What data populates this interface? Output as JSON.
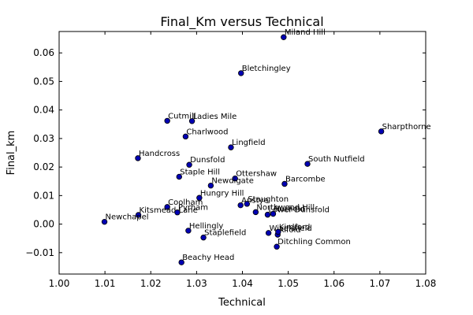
{
  "chart_data": {
    "type": "scatter",
    "title": "Final_Km versus Technical",
    "xlabel": "Technical",
    "ylabel": "Final_km",
    "xlim": [
      1.0,
      1.08
    ],
    "ylim": [
      -0.0175,
      0.0675
    ],
    "x_ticks": [
      "1.00",
      "1.01",
      "1.02",
      "1.03",
      "1.04",
      "1.05",
      "1.06",
      "1.07",
      "1.08"
    ],
    "y_ticks": [
      "−0.01",
      "0.00",
      "0.01",
      "0.02",
      "0.03",
      "0.04",
      "0.05",
      "0.06"
    ],
    "x_tick_values": [
      1.0,
      1.01,
      1.02,
      1.03,
      1.04,
      1.05,
      1.06,
      1.07,
      1.08
    ],
    "y_tick_values": [
      -0.01,
      0.0,
      0.01,
      0.02,
      0.03,
      0.04,
      0.05,
      0.06
    ],
    "grid": false,
    "marker_color": "#0000b3",
    "points": [
      {
        "label": "Miland Hill",
        "x": 1.049,
        "y": 0.0655
      },
      {
        "label": "Bletchingley",
        "x": 1.0397,
        "y": 0.0529
      },
      {
        "label": "Cutmill",
        "x": 1.0236,
        "y": 0.0362
      },
      {
        "label": "Ladies Mile",
        "x": 1.029,
        "y": 0.0361
      },
      {
        "label": "Charlwood",
        "x": 1.0276,
        "y": 0.0307
      },
      {
        "label": "Sharpthorne",
        "x": 1.0703,
        "y": 0.0325
      },
      {
        "label": "Lingfield",
        "x": 1.0375,
        "y": 0.0269
      },
      {
        "label": "Handcross",
        "x": 1.0172,
        "y": 0.0231
      },
      {
        "label": "Dunsfold",
        "x": 1.0284,
        "y": 0.0208
      },
      {
        "label": "South Nutfield",
        "x": 1.0542,
        "y": 0.0211
      },
      {
        "label": "Staple Hill",
        "x": 1.0262,
        "y": 0.0166
      },
      {
        "label": "Ottershaw",
        "x": 1.0384,
        "y": 0.016
      },
      {
        "label": "Newdigate",
        "x": 1.0331,
        "y": 0.0135
      },
      {
        "label": "Barcombe",
        "x": 1.0492,
        "y": 0.0141
      },
      {
        "label": "Hungry Hill",
        "x": 1.0306,
        "y": 0.0092
      },
      {
        "label": "Coolham",
        "x": 1.0236,
        "y": 0.006
      },
      {
        "label": "Anstye",
        "x": 1.0396,
        "y": 0.0066
      },
      {
        "label": "Staughton",
        "x": 1.041,
        "y": 0.0071
      },
      {
        "label": "Northwood Hill",
        "x": 1.0429,
        "y": 0.0042
      },
      {
        "label": "Kitsmead Lane",
        "x": 1.0173,
        "y": 0.0032
      },
      {
        "label": "Pyrham",
        "x": 1.0258,
        "y": 0.0041
      },
      {
        "label": "Lower Dunsfold",
        "x": 1.0455,
        "y": 0.0033
      },
      {
        "label": "Nutfield",
        "x": 1.0467,
        "y": 0.0036
      },
      {
        "label": "Newchapel",
        "x": 1.0099,
        "y": 0.0008
      },
      {
        "label": "Hellingly",
        "x": 1.0282,
        "y": -0.0023
      },
      {
        "label": "Staplefield",
        "x": 1.0315,
        "y": -0.0047
      },
      {
        "label": "Wivelsfield",
        "x": 1.0457,
        "y": -0.0031
      },
      {
        "label": "Alfold",
        "x": 1.0477,
        "y": -0.0037
      },
      {
        "label": "Kirdford",
        "x": 1.0478,
        "y": -0.0027
      },
      {
        "label": "Ditchling Common",
        "x": 1.0475,
        "y": -0.0079
      },
      {
        "label": "Beachy Head",
        "x": 1.0267,
        "y": -0.0134
      }
    ]
  }
}
